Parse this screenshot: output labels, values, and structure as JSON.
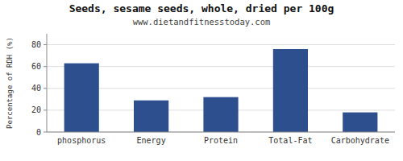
{
  "chart_data": {
    "type": "bar",
    "title": "Seeds, sesame seeds, whole, dried per 100g",
    "subtitle": "www.dietandfitnesstoday.com",
    "categories": [
      "phosphorus",
      "Energy",
      "Protein",
      "Total-Fat",
      "Carbohydrate"
    ],
    "values": [
      63,
      29,
      32,
      76,
      18
    ],
    "color": "#2d4f8e",
    "ylabel": "Percentage of RDH (%)",
    "ylim": [
      0,
      90
    ],
    "yticks": [
      0,
      20,
      40,
      60,
      80
    ],
    "grid": true
  }
}
